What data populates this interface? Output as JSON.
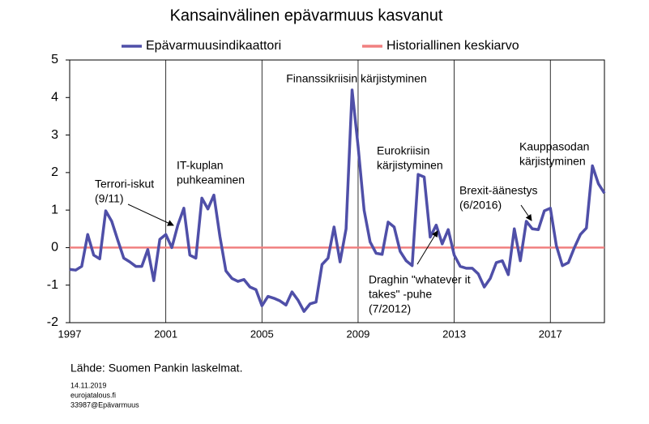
{
  "chart_data": {
    "type": "line",
    "title": "Kansainvälinen epävarmuus kasvanut",
    "x": [
      1997,
      1997.25,
      1997.5,
      1997.75,
      1998,
      1998.25,
      1998.5,
      1998.75,
      1999,
      1999.25,
      1999.5,
      1999.75,
      2000,
      2000.25,
      2000.5,
      2000.75,
      2001,
      2001.25,
      2001.5,
      2001.75,
      2002,
      2002.25,
      2002.5,
      2002.75,
      2003,
      2003.25,
      2003.5,
      2003.75,
      2004,
      2004.25,
      2004.5,
      2004.75,
      2005,
      2005.25,
      2005.5,
      2005.75,
      2006,
      2006.25,
      2006.5,
      2006.75,
      2007,
      2007.25,
      2007.5,
      2007.75,
      2008,
      2008.25,
      2008.5,
      2008.75,
      2009,
      2009.25,
      2009.5,
      2009.75,
      2010,
      2010.25,
      2010.5,
      2010.75,
      2011,
      2011.25,
      2011.5,
      2011.75,
      2012,
      2012.25,
      2012.5,
      2012.75,
      2013,
      2013.25,
      2013.5,
      2013.75,
      2014,
      2014.25,
      2014.5,
      2014.75,
      2015,
      2015.25,
      2015.5,
      2015.75,
      2016,
      2016.25,
      2016.5,
      2016.75,
      2017,
      2017.25,
      2017.5,
      2017.75,
      2018,
      2018.25,
      2018.5,
      2018.75,
      2019,
      2019.25
    ],
    "series": [
      {
        "name": "Epävarmuusindikaattori",
        "color": "#4f4fa8",
        "values": [
          -0.58,
          -0.6,
          -0.5,
          0.35,
          -0.2,
          -0.3,
          0.98,
          0.7,
          0.2,
          -0.28,
          -0.38,
          -0.5,
          -0.5,
          -0.05,
          -0.88,
          0.22,
          0.35,
          0.0,
          0.6,
          1.05,
          -0.2,
          -0.28,
          1.32,
          1.03,
          1.4,
          0.3,
          -0.62,
          -0.82,
          -0.9,
          -0.85,
          -1.05,
          -1.12,
          -1.55,
          -1.3,
          -1.35,
          -1.42,
          -1.53,
          -1.18,
          -1.4,
          -1.7,
          -1.5,
          -1.45,
          -0.45,
          -0.28,
          0.55,
          -0.38,
          0.5,
          4.2,
          2.7,
          1.0,
          0.15,
          -0.15,
          -0.18,
          0.68,
          0.55,
          -0.1,
          -0.35,
          -0.48,
          1.95,
          1.88,
          0.28,
          0.6,
          0.1,
          0.48,
          -0.2,
          -0.5,
          -0.55,
          -0.55,
          -0.7,
          -1.05,
          -0.82,
          -0.4,
          -0.35,
          -0.72,
          0.5,
          -0.35,
          0.7,
          0.5,
          0.48,
          0.98,
          1.05,
          0.05,
          -0.48,
          -0.4,
          0.0,
          0.35,
          0.52,
          2.18,
          1.7,
          1.45
        ]
      },
      {
        "name": "Historiallinen keskiarvo",
        "color": "#f08080",
        "x": [
          1997,
          2019.25
        ],
        "values": [
          0,
          0
        ]
      }
    ],
    "xlim": [
      1997,
      2019.25
    ],
    "xticks": [
      1997,
      2001,
      2005,
      2009,
      2013,
      2017
    ],
    "ylim": [
      -2,
      5
    ],
    "yticks": [
      -2,
      -1,
      0,
      1,
      2,
      3,
      4,
      5
    ],
    "grid": "x",
    "annotations": [
      {
        "lines": [
          "Terrori-iskut",
          "(9/11)"
        ]
      },
      {
        "lines": [
          "IT-kuplan",
          "puhkeaminen"
        ]
      },
      {
        "lines": [
          "Finanssikriisin kärjistyminen"
        ]
      },
      {
        "lines": [
          "Eurokriisin",
          "kärjistyminen"
        ]
      },
      {
        "lines": [
          "Draghin \"whatever it",
          "takes\" -puhe",
          "(7/2012)"
        ]
      },
      {
        "lines": [
          "Brexit-äänestys",
          "(6/2016)"
        ]
      },
      {
        "lines": [
          "Kauppasodan",
          "kärjistyminen"
        ]
      }
    ],
    "source": "Lähde: Suomen Pankin laskelmat.",
    "footer": [
      "14.11.2019",
      "eurojatalous.fi",
      "33987@Epävarmuus"
    ]
  }
}
